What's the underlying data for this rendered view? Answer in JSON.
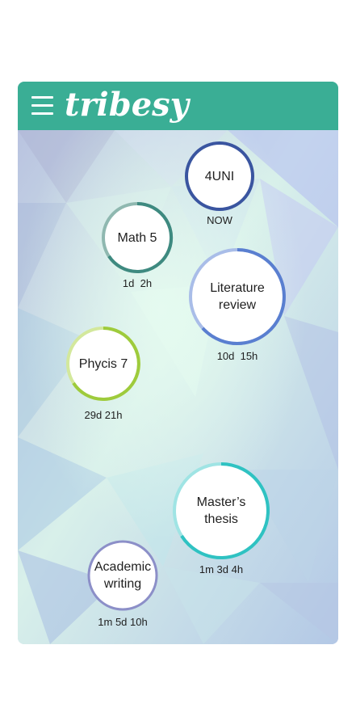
{
  "header": {
    "brand": "tribesy",
    "bg_color": "#3aae95"
  },
  "nodes": [
    {
      "id": "4uni",
      "label": "4UNI",
      "time": "NOW",
      "ring_color": "#3a55a0",
      "ring_light": "#3a55a0"
    },
    {
      "id": "math5",
      "label": "Math 5",
      "time": "1d  2h",
      "ring_color": "#3e8a80",
      "ring_light": "#8fb8b0"
    },
    {
      "id": "literature",
      "label": "Literature review",
      "time": "10d  15h",
      "ring_color": "#5a7fd0",
      "ring_light": "#a9bde8"
    },
    {
      "id": "phycis7",
      "label": "Phycis 7",
      "time": "29d 21h",
      "ring_color": "#9ecb3c",
      "ring_light": "#d3e89c"
    },
    {
      "id": "masters",
      "label": "Master’s thesis",
      "time": "1m 3d 4h",
      "ring_color": "#2fc2c2",
      "ring_light": "#9fe4e4"
    },
    {
      "id": "academic",
      "label": "Academic writing",
      "time": "1m 5d 10h",
      "ring_color": "#8c8fc8",
      "ring_light": "#8c8fc8"
    }
  ]
}
